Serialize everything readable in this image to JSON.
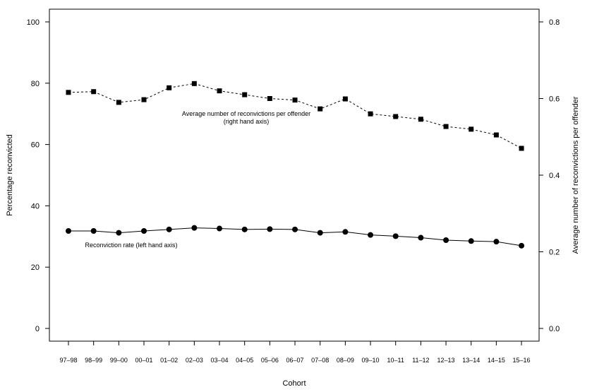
{
  "chart_data": {
    "type": "line",
    "categories": [
      "97–98",
      "98–99",
      "99–00",
      "00–01",
      "01–02",
      "02–03",
      "03–04",
      "04–05",
      "05–06",
      "06–07",
      "07–08",
      "08–09",
      "09–10",
      "10–11",
      "11–12",
      "12–13",
      "13–14",
      "14–15",
      "15–16"
    ],
    "xlabel": "Cohort",
    "ylabel_left": "Percentage reconvicted",
    "ylabel_right": "Average number of reconvictions per offender",
    "ylim_left": [
      0,
      100
    ],
    "ylim_right": [
      0,
      0.8
    ],
    "yticks_left": [
      "0",
      "20",
      "40",
      "60",
      "80",
      "100"
    ],
    "yticks_right": [
      "0.0",
      "0.2",
      "0.4",
      "0.6",
      "0.8"
    ],
    "grid": false,
    "series": [
      {
        "axis": "left",
        "marker": "circle",
        "line_style": "solid",
        "values": [
          31.8,
          31.8,
          31.2,
          31.8,
          32.3,
          32.8,
          32.6,
          32.3,
          32.4,
          32.3,
          31.2,
          31.5,
          30.5,
          30.1,
          29.6,
          28.8,
          28.5,
          28.3,
          27.0
        ]
      },
      {
        "axis": "right",
        "marker": "square",
        "line_style": "dashed",
        "values": [
          0.616,
          0.618,
          0.59,
          0.597,
          0.628,
          0.639,
          0.62,
          0.61,
          0.6,
          0.596,
          0.573,
          0.599,
          0.56,
          0.553,
          0.546,
          0.527,
          0.52,
          0.505,
          0.47
        ]
      }
    ],
    "annotations": [
      {
        "lines": [
          "Average number of reconvictions per offender",
          "(right hand axis)"
        ]
      },
      {
        "lines": [
          "Reconviction rate (left hand axis)"
        ]
      }
    ]
  }
}
